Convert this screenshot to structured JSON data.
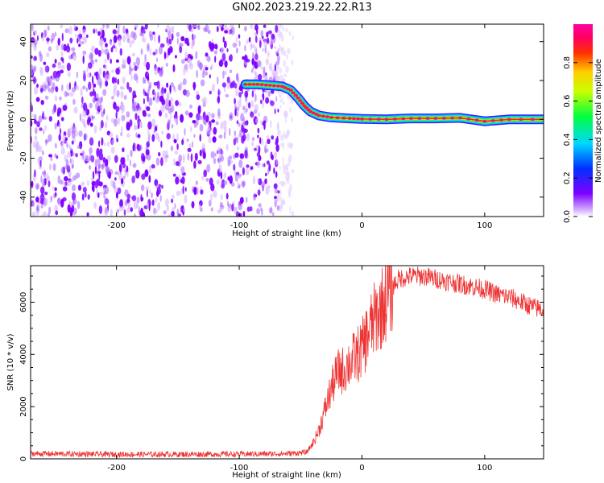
{
  "title": "GN02.2023.219.22.22.R13",
  "chart_data": [
    {
      "type": "heatmap",
      "xlabel": "Height of straight line (km)",
      "ylabel": "Frequency (Hz)",
      "xlim": [
        -270,
        148
      ],
      "ylim": [
        -50,
        49
      ],
      "xticks": [
        -200,
        -100,
        0,
        100
      ],
      "yticks": [
        40,
        20,
        0,
        -20,
        -40
      ],
      "colorbar": {
        "label": "Normalized spectral amplitude",
        "range": [
          0,
          1
        ],
        "ticks": [
          0.0,
          0.2,
          0.4,
          0.6,
          0.8
        ],
        "colormap": "rainbow (violet-blue-cyan-green-yellow-red-magenta)"
      },
      "noise_region_x": [
        -270,
        -60
      ],
      "signal_trace": [
        {
          "x": -95,
          "y": 18
        },
        {
          "x": -85,
          "y": 18
        },
        {
          "x": -75,
          "y": 17.5
        },
        {
          "x": -65,
          "y": 17
        },
        {
          "x": -58,
          "y": 15
        },
        {
          "x": -52,
          "y": 11
        },
        {
          "x": -47,
          "y": 7
        },
        {
          "x": -42,
          "y": 4
        },
        {
          "x": -35,
          "y": 2
        },
        {
          "x": -25,
          "y": 1
        },
        {
          "x": -10,
          "y": 0.5
        },
        {
          "x": 0,
          "y": 0.2
        },
        {
          "x": 20,
          "y": 0
        },
        {
          "x": 40,
          "y": 0.5
        },
        {
          "x": 60,
          "y": 0.5
        },
        {
          "x": 80,
          "y": 0.8
        },
        {
          "x": 100,
          "y": -1
        },
        {
          "x": 120,
          "y": 0
        },
        {
          "x": 148,
          "y": 0
        }
      ]
    },
    {
      "type": "line",
      "xlabel": "Height of straight line (km)",
      "ylabel": "SNR (10 * v/v)",
      "xlim": [
        -270,
        148
      ],
      "ylim": [
        0,
        7400
      ],
      "xticks": [
        -200,
        -100,
        0,
        100
      ],
      "yticks": [
        0,
        2000,
        4000,
        6000
      ],
      "color": "#ee3333",
      "series": [
        {
          "x": [
            -270,
            -200,
            -100,
            -60,
            -45,
            -40,
            -35,
            -30,
            -25,
            -20,
            -15,
            -10,
            -5,
            0,
            5,
            10,
            15,
            20,
            25,
            30,
            40,
            50,
            60,
            70,
            80,
            90,
            100,
            110,
            120,
            130,
            140,
            148
          ],
          "values": [
            200,
            170,
            180,
            200,
            250,
            600,
            1100,
            1900,
            2700,
            3300,
            3400,
            3700,
            3900,
            4200,
            4800,
            5300,
            5700,
            6200,
            6600,
            6900,
            7000,
            7000,
            6900,
            6800,
            6700,
            6600,
            6500,
            6300,
            6200,
            6000,
            5800,
            5700
          ]
        }
      ]
    }
  ]
}
